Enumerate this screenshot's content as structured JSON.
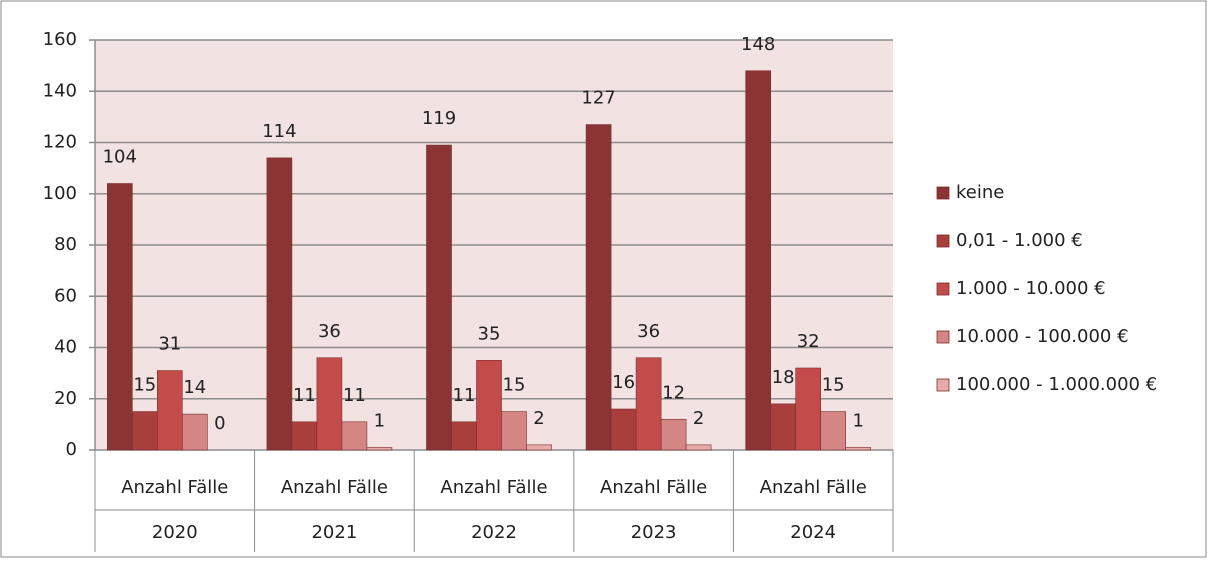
{
  "chart_data": {
    "type": "bar",
    "categories": [
      "2020",
      "2021",
      "2022",
      "2023",
      "2024"
    ],
    "category_labels": [
      "Anzahl Fälle",
      "Anzahl Fälle",
      "Anzahl Fälle",
      "Anzahl Fälle",
      "Anzahl Fälle"
    ],
    "series": [
      {
        "name": "keine",
        "color": "#8b3434",
        "values": [
          104,
          114,
          119,
          127,
          148
        ]
      },
      {
        "name": "0,01 - 1.000 €",
        "color": "#a83f3d",
        "values": [
          15,
          11,
          11,
          16,
          18
        ]
      },
      {
        "name": "1.000 - 10.000 €",
        "color": "#c34c4b",
        "values": [
          31,
          36,
          35,
          36,
          32
        ]
      },
      {
        "name": "10.000 - 100.000 €",
        "color": "#d48685",
        "values": [
          14,
          11,
          15,
          12,
          15
        ]
      },
      {
        "name": "100.000 - 1.000.000 €",
        "color": "#e6aaa9",
        "values": [
          0,
          1,
          2,
          2,
          1
        ]
      }
    ],
    "ylim": [
      0,
      160
    ],
    "yticks": [
      0,
      20,
      40,
      60,
      80,
      100,
      120,
      140,
      160
    ],
    "grid": true,
    "legend": "right"
  }
}
